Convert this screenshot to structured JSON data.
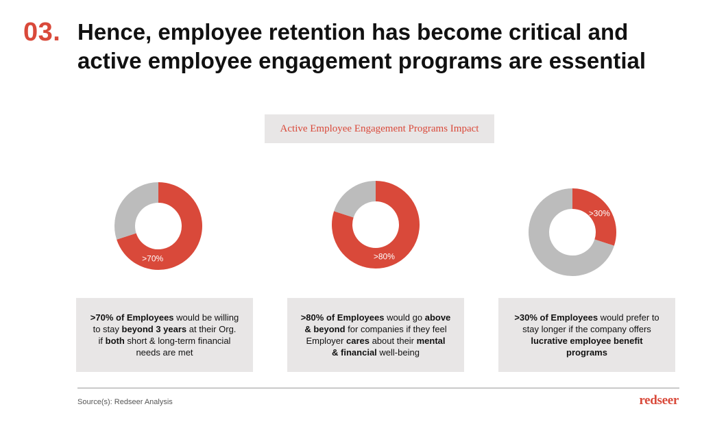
{
  "slide": {
    "number": "03.",
    "title_line1": "Hence, employee retention has become critical and",
    "title_line2": "active employee engagement programs are essential",
    "banner": "Active Employee Engagement Programs Impact",
    "source": "Source(s): Redseer Analysis",
    "logo": "redseer"
  },
  "colors": {
    "accent": "#d9493a",
    "grey": "#bcbcbc",
    "card_bg": "#e8e6e6"
  },
  "chart_data": [
    {
      "type": "pie",
      "label": ">70%",
      "values": [
        70,
        30
      ],
      "slices": [
        "highlighted",
        "rest"
      ]
    },
    {
      "type": "pie",
      "label": ">80%",
      "values": [
        80,
        20
      ],
      "slices": [
        "highlighted",
        "rest"
      ]
    },
    {
      "type": "pie",
      "label": ">30%",
      "values": [
        30,
        70
      ],
      "slices": [
        "highlighted",
        "rest"
      ]
    }
  ],
  "cards": [
    {
      "lines": [
        [
          {
            "t": ">70% of Employees",
            "b": true
          },
          {
            "t": " would be willing",
            "b": false
          }
        ],
        [
          {
            "t": "to stay ",
            "b": false
          },
          {
            "t": "beyond 3 years",
            "b": true
          },
          {
            "t": " at their Org.",
            "b": false
          }
        ],
        [
          {
            "t": "if ",
            "b": false
          },
          {
            "t": "both",
            "b": true
          },
          {
            "t": " short & long-term financial",
            "b": false
          }
        ],
        [
          {
            "t": "needs are met",
            "b": false
          }
        ]
      ]
    },
    {
      "lines": [
        [
          {
            "t": ">80% of Employees",
            "b": true
          },
          {
            "t": " would go ",
            "b": false
          },
          {
            "t": "above",
            "b": true
          }
        ],
        [
          {
            "t": "& beyond",
            "b": true
          },
          {
            "t": " for companies if they feel",
            "b": false
          }
        ],
        [
          {
            "t": "Employer ",
            "b": false
          },
          {
            "t": "cares",
            "b": true
          },
          {
            "t": " about their ",
            "b": false
          },
          {
            "t": "mental",
            "b": true
          }
        ],
        [
          {
            "t": "& financial",
            "b": true
          },
          {
            "t": " well-being",
            "b": false
          }
        ]
      ]
    },
    {
      "lines": [
        [
          {
            "t": ">30% of Employees",
            "b": true
          },
          {
            "t": " would prefer to",
            "b": false
          }
        ],
        [
          {
            "t": "stay longer if the company offers",
            "b": false
          }
        ],
        [
          {
            "t": "lucrative employee benefit",
            "b": true
          }
        ],
        [
          {
            "t": "programs",
            "b": true
          }
        ]
      ]
    }
  ]
}
